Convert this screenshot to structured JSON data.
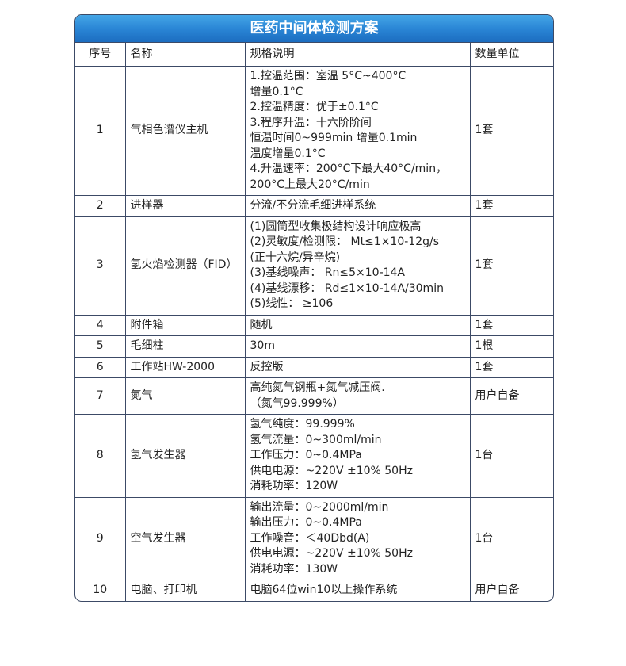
{
  "title": "医药中间体检测方案",
  "headers": [
    "序号",
    "名称",
    "规格说明",
    "数量单位"
  ],
  "rows": [
    {
      "no": "1",
      "name": "气相色谱仪主机",
      "spec": [
        "1.控温范围：室温 5°C~400°C",
        "增量0.1°C",
        "2.控温精度：优于±0.1°C",
        "3.程序升温：十六阶阶间",
        "恒温时间0~999min 增量0.1min",
        "温度增量0.1°C",
        "4.升温速率：200°C下最大40°C/min，",
        "200°C上最大20°C/min"
      ],
      "qty": "1套"
    },
    {
      "no": "2",
      "name": "进样器",
      "spec": [
        "分流/不分流毛细进样系统"
      ],
      "qty": "1套"
    },
    {
      "no": "3",
      "name": "氢火焰检测器（FID）",
      "spec": [
        "(1)圆筒型收集极结构设计响应极高",
        "(2)灵敏度/检测限： Mt≤1×10-12g/s",
        "(正十六烷/异辛烷)",
        "(3)基线噪声： Rn≤5×10-14A",
        "(4)基线漂移： Rd≤1×10-14A/30min",
        "(5)线性： ≥106"
      ],
      "qty": "1套"
    },
    {
      "no": "4",
      "name": "附件箱",
      "spec": [
        "随机"
      ],
      "qty": "1套"
    },
    {
      "no": "5",
      "name": "毛细柱",
      "spec": [
        "30m"
      ],
      "qty": "1根"
    },
    {
      "no": "6",
      "name": "工作站HW-2000",
      "spec": [
        "反控版"
      ],
      "qty": "1套"
    },
    {
      "no": "7",
      "name": "氮气",
      "spec": [
        "高纯氮气钢瓶+氮气减压阀.",
        "（氮气99.999%）"
      ],
      "qty": "用户自备"
    },
    {
      "no": "8",
      "name": "氢气发生器",
      "spec": [
        "氢气纯度：99.999%",
        "氢气流量：0~300ml/min",
        "工作压力：0~0.4MPa",
        "供电电源：~220V ±10% 50Hz",
        "消耗功率：120W"
      ],
      "qty": "1台"
    },
    {
      "no": "9",
      "name": "空气发生器",
      "spec": [
        "输出流量：0~2000ml/min",
        "输出压力：0~0.4MPa",
        "工作噪音：＜40Dbd(A)",
        "供电电源：~220V ±10% 50Hz",
        "消耗功率：130W"
      ],
      "qty": "1台"
    },
    {
      "no": "10",
      "name": "电脑、打印机",
      "spec": [
        "电脑64位win10以上操作系统"
      ],
      "qty": "用户自备"
    }
  ]
}
